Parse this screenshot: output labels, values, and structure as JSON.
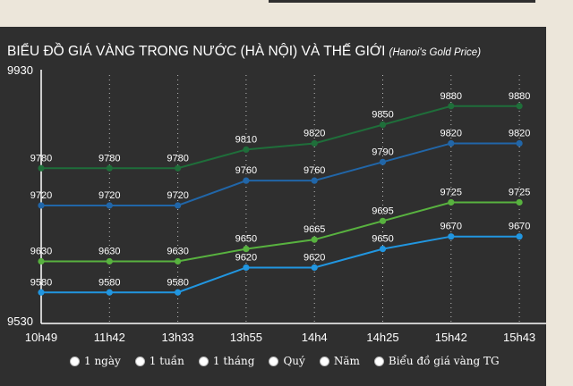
{
  "page": {
    "title": "BIỂU ĐỒ GIÁ VÀNG TRONG NƯỚC (HÀ NỘI) VÀ THẾ GIỚI",
    "subtitle": "(Hanoi's Gold Price)"
  },
  "range_options": [
    {
      "label": "1 ngày"
    },
    {
      "label": "1 tuần"
    },
    {
      "label": "1 tháng"
    },
    {
      "label": "Quý"
    },
    {
      "label": "Năm"
    },
    {
      "label": "Biểu đồ giá vàng TG"
    }
  ],
  "colors": {
    "background": "#2f2f2f",
    "series_1": "#1f6e3a",
    "series_2": "#2166a8",
    "series_3": "#58b23f",
    "series_4": "#2196e0",
    "text": "#ffffff"
  },
  "chart_data": {
    "type": "line",
    "title": "BIỂU ĐỒ GIÁ VÀNG TRONG NƯỚC (HÀ NỘI) VÀ THẾ GIỚI",
    "subtitle": "(Hanoi's Gold Price)",
    "categories": [
      "10h49",
      "11h42",
      "13h33",
      "13h55",
      "14h4",
      "14h25",
      "15h42",
      "15h43"
    ],
    "ylim": [
      9530,
      9930
    ],
    "y_tick_labels": [
      "9930",
      "9530"
    ],
    "grid": "vertical dotted",
    "series": [
      {
        "values": [
          9780,
          9780,
          9780,
          9810,
          9820,
          9850,
          9880,
          9880
        ]
      },
      {
        "values": [
          9720,
          9720,
          9720,
          9760,
          9760,
          9790,
          9820,
          9820
        ]
      },
      {
        "values": [
          9630,
          9630,
          9630,
          9650,
          9665,
          9695,
          9725,
          9725
        ]
      },
      {
        "values": [
          9580,
          9580,
          9580,
          9620,
          9620,
          9650,
          9670,
          9670
        ]
      }
    ]
  }
}
